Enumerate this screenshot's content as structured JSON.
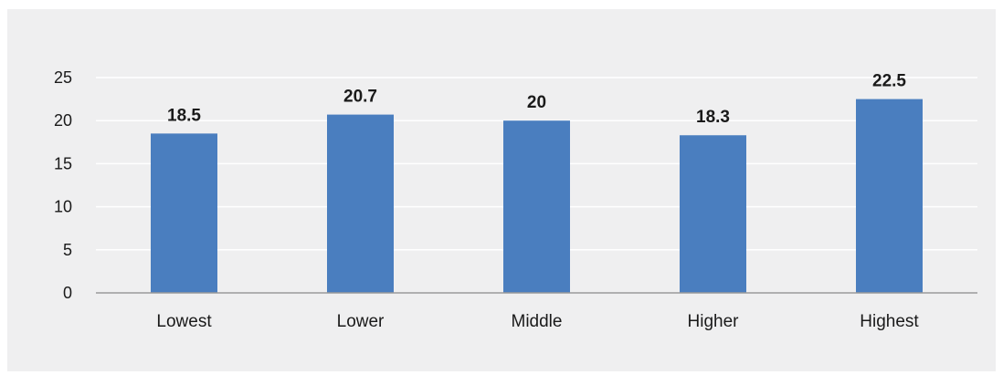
{
  "chart_data": {
    "type": "bar",
    "categories": [
      "Lowest",
      "Lower",
      "Middle",
      "Higher",
      "Highest"
    ],
    "values": [
      18.5,
      20.7,
      20,
      18.3,
      22.5
    ],
    "data_labels": [
      "18.5",
      "20.7",
      "20",
      "18.3",
      "22.5"
    ],
    "title": "",
    "xlabel": "",
    "ylabel": "",
    "ylim": [
      0,
      25
    ],
    "yticks": [
      "0",
      "5",
      "10",
      "15",
      "20",
      "25"
    ],
    "grid": true,
    "legend": "none",
    "colors": {
      "bar": "#4a7ebf",
      "grid": "#ffffff",
      "background": "#efeff0",
      "axis": "#9a9a9a"
    }
  }
}
